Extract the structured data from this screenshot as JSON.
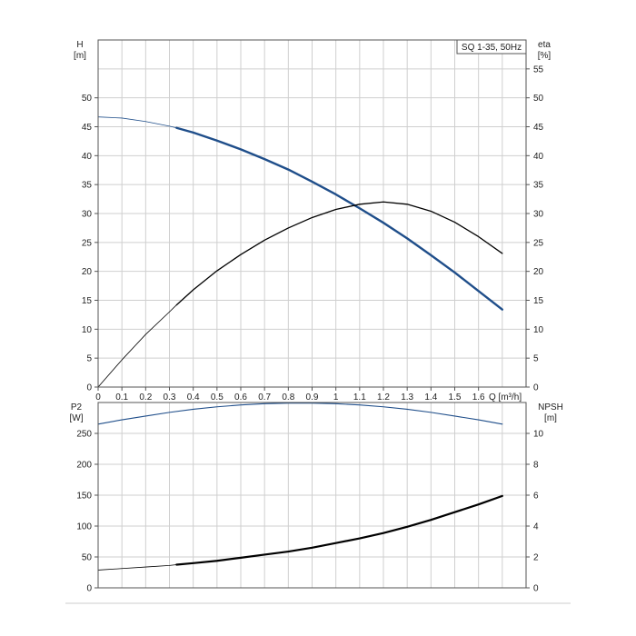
{
  "chart_data": [
    {
      "type": "line",
      "title": "SQ 1-35, 50Hz",
      "x_axis": {
        "label": "Q [m³/h]",
        "range": [
          0,
          1.8
        ],
        "ticks": [
          0,
          0.1,
          0.2,
          0.3,
          0.4,
          0.5,
          0.6,
          0.7,
          0.8,
          0.9,
          1,
          1.1,
          1.2,
          1.3,
          1.4,
          1.5,
          1.6
        ]
      },
      "left_axis": {
        "label_name": "H",
        "label_unit": "[m]",
        "range": [
          0,
          60
        ],
        "ticks": [
          0,
          5,
          10,
          15,
          20,
          25,
          30,
          35,
          40,
          45,
          50
        ]
      },
      "right_axis": {
        "label_name": "eta",
        "label_unit": "[%]",
        "range": [
          0,
          60
        ],
        "ticks": [
          0,
          5,
          10,
          15,
          20,
          25,
          30,
          35,
          40,
          45,
          50,
          55
        ]
      },
      "grid": true,
      "series": [
        {
          "axis": "left",
          "color": "#1f4e8a",
          "thin_until_x": 0.33,
          "x": [
            0,
            0.1,
            0.2,
            0.3,
            0.33,
            0.4,
            0.5,
            0.6,
            0.7,
            0.8,
            0.9,
            1.0,
            1.1,
            1.2,
            1.3,
            1.4,
            1.5,
            1.6,
            1.7
          ],
          "y": [
            46.7,
            46.5,
            45.9,
            45.1,
            44.8,
            44.0,
            42.6,
            41.1,
            39.4,
            37.6,
            35.5,
            33.3,
            30.9,
            28.4,
            25.7,
            22.8,
            19.8,
            16.6,
            13.4
          ]
        },
        {
          "axis": "right",
          "color": "#000000",
          "thin_until_x": 0.33,
          "x": [
            0,
            0.1,
            0.2,
            0.3,
            0.33,
            0.4,
            0.5,
            0.6,
            0.7,
            0.8,
            0.9,
            1.0,
            1.1,
            1.2,
            1.3,
            1.4,
            1.5,
            1.6,
            1.7
          ],
          "y": [
            0,
            4.7,
            9.1,
            13.0,
            14.2,
            16.8,
            20.1,
            22.9,
            25.4,
            27.5,
            29.3,
            30.7,
            31.6,
            32.0,
            31.6,
            30.4,
            28.5,
            26.0,
            23.1
          ]
        }
      ]
    },
    {
      "type": "line",
      "x_axis": {
        "range": [
          0,
          1.8
        ],
        "ticks": []
      },
      "left_axis": {
        "label_name": "P2",
        "label_unit": "[W]",
        "range": [
          0,
          300
        ],
        "ticks": [
          0,
          50,
          100,
          150,
          200,
          250
        ]
      },
      "right_axis": {
        "label_name": "NPSH",
        "label_unit": "[m]",
        "range": [
          0,
          12
        ],
        "ticks": [
          0,
          2,
          4,
          6,
          8,
          10
        ]
      },
      "grid": true,
      "series": [
        {
          "axis": "left",
          "color": "#1f4e8a",
          "thin_until_x": 0,
          "x": [
            0,
            0.1,
            0.2,
            0.3,
            0.4,
            0.5,
            0.6,
            0.7,
            0.8,
            0.9,
            1.0,
            1.1,
            1.2,
            1.3,
            1.4,
            1.5,
            1.6,
            1.7
          ],
          "y": [
            265,
            272,
            278,
            284,
            289,
            293,
            296,
            298,
            299,
            299,
            298,
            296,
            293,
            289,
            284,
            278,
            272,
            265
          ]
        },
        {
          "axis": "right",
          "color": "#000000",
          "thin_until_x": 0.33,
          "x": [
            0,
            0.1,
            0.2,
            0.3,
            0.33,
            0.4,
            0.5,
            0.6,
            0.7,
            0.8,
            0.9,
            1.0,
            1.1,
            1.2,
            1.3,
            1.4,
            1.5,
            1.6,
            1.7
          ],
          "y": [
            1.15,
            1.25,
            1.35,
            1.45,
            1.5,
            1.6,
            1.75,
            1.95,
            2.15,
            2.35,
            2.6,
            2.9,
            3.2,
            3.55,
            3.95,
            4.4,
            4.9,
            5.4,
            5.95
          ]
        }
      ]
    }
  ]
}
